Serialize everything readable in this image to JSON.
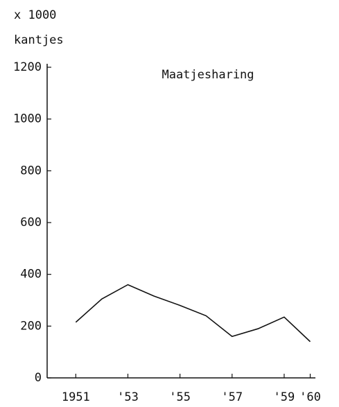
{
  "chart_data": {
    "type": "line",
    "title": "Maatjesharing",
    "y_unit": "x 1000",
    "y_label": "kantjes",
    "x": [
      1951,
      1952,
      1953,
      1954,
      1955,
      1956,
      1957,
      1958,
      1959,
      1960
    ],
    "series": [
      {
        "name": "Maatjesharing",
        "color": "#111111",
        "values": [
          215,
          305,
          360,
          316,
          280,
          240,
          160,
          190,
          235,
          140
        ]
      }
    ],
    "xlim": [
      1949.9,
      1960.2
    ],
    "xticks": [
      {
        "value": 1951,
        "label": "1951"
      },
      {
        "value": 1953,
        "label": "'53"
      },
      {
        "value": 1955,
        "label": "'55"
      },
      {
        "value": 1957,
        "label": "'57"
      },
      {
        "value": 1959,
        "label": "'59"
      },
      {
        "value": 1960,
        "label": "'60"
      }
    ],
    "ylim": [
      0,
      1200
    ],
    "yticks": [
      0,
      200,
      400,
      600,
      800,
      1000,
      1200
    ],
    "grid": false
  }
}
